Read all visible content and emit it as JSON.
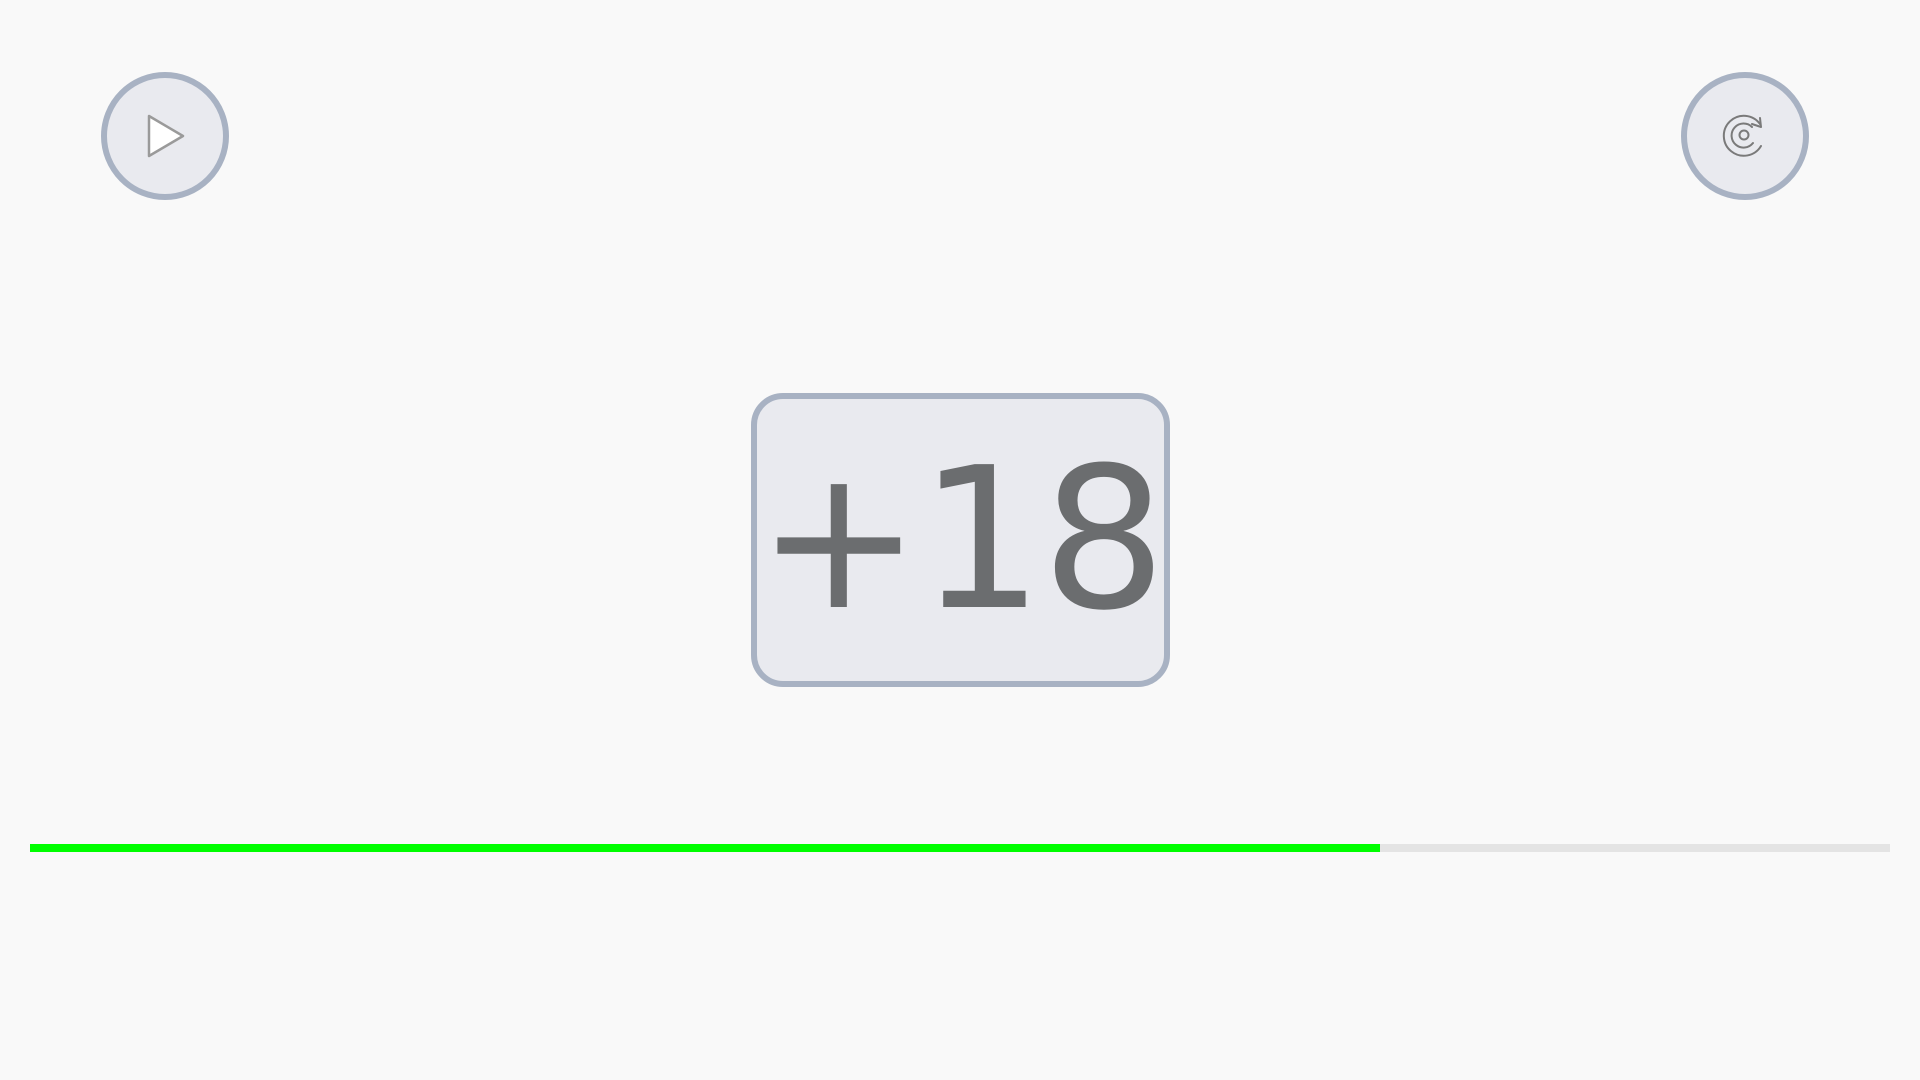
{
  "controls": {
    "play": {
      "icon": "play-icon"
    },
    "replay": {
      "icon": "replay-icon"
    }
  },
  "counter": {
    "value": "+18"
  },
  "progress": {
    "fraction": 0.726,
    "fill_color": "#00ff00",
    "track_color": "#e4e4e4"
  },
  "colors": {
    "background": "#f9f9f9",
    "button_fill": "#e9eaef",
    "button_border": "#a8b2c3",
    "counter_text": "#6b6d6f"
  }
}
